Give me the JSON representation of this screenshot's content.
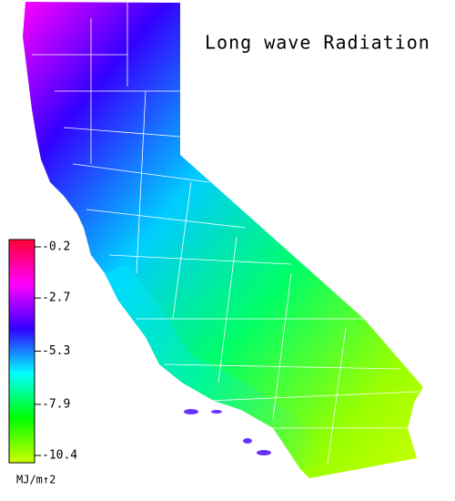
{
  "title": "Long wave Radiation",
  "colorbar": {
    "ticks": [
      -0.2,
      -2.7,
      -5.3,
      -7.9,
      -10.4
    ],
    "unit": "MJ/m↑2",
    "colors": [
      "#ff0033",
      "#ff00ff",
      "#3300ff",
      "#00ffff",
      "#00ff00",
      "#ccff00"
    ]
  }
}
